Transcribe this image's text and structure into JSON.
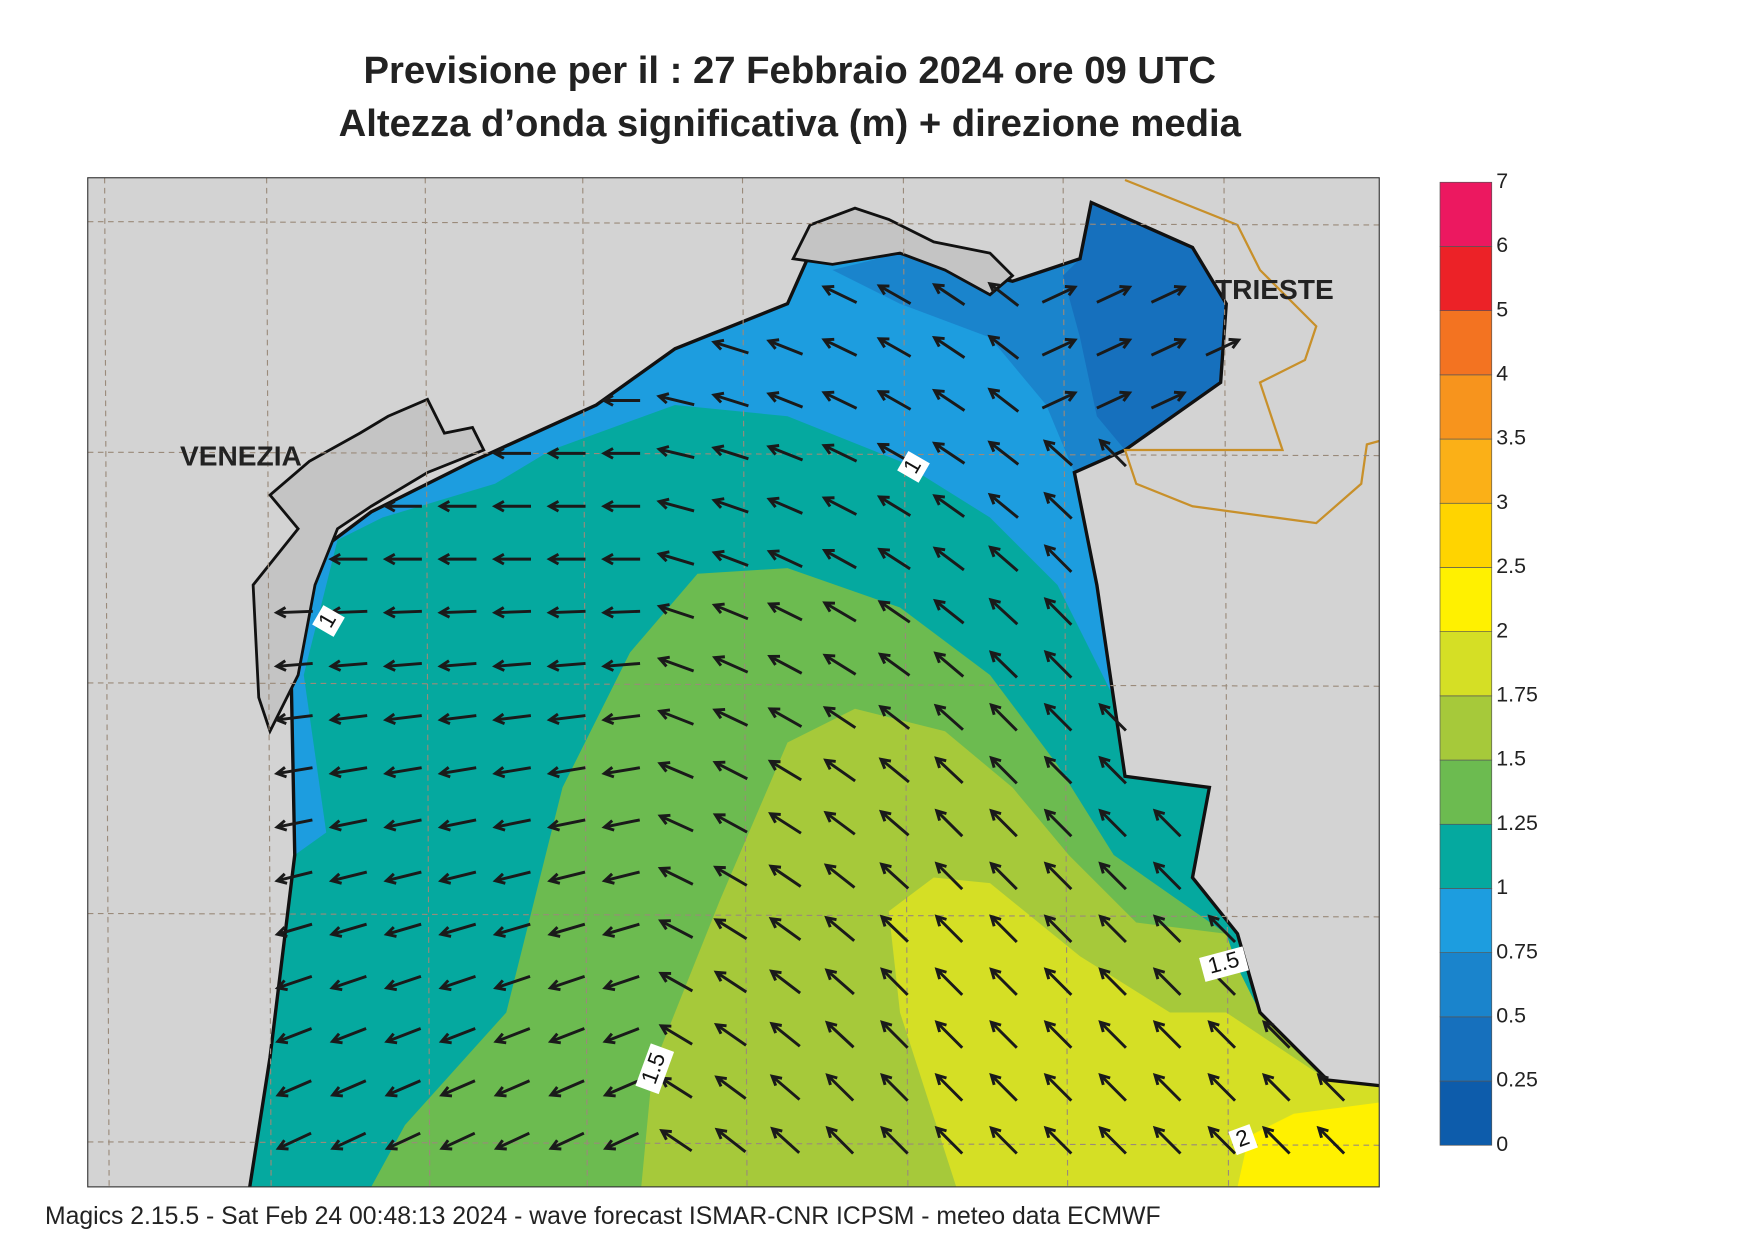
{
  "header": {
    "title": "Previsione per il  :  27  Febbraio 2024   ore 09 UTC",
    "subtitle": "Altezza d’onda significativa (m) + direzione media"
  },
  "map": {
    "places": [
      "VENEZIA",
      "TRIESTE"
    ],
    "contour_labels": [
      "1",
      "1",
      "1.5",
      "1.5",
      "2"
    ]
  },
  "legend": {
    "levels": [
      0,
      0.25,
      0.5,
      0.75,
      1,
      1.25,
      1.5,
      1.75,
      2,
      2.5,
      3,
      3.5,
      4,
      5,
      6,
      7
    ],
    "colors": [
      "#0d5cab",
      "#1670bd",
      "#1a84cc",
      "#1d9ddf",
      "#05a99f",
      "#6cbb50",
      "#a6c93a",
      "#d5df25",
      "#fff100",
      "#ffd400",
      "#fbb017",
      "#f7941d",
      "#f37321",
      "#ec2227",
      "#ec1860"
    ]
  },
  "footer": "Magics 2.15.5 - Sat Feb 24 00:48:13 2024 - wave forecast  ISMAR-CNR  ICPSM - meteo data   ECMWF"
}
